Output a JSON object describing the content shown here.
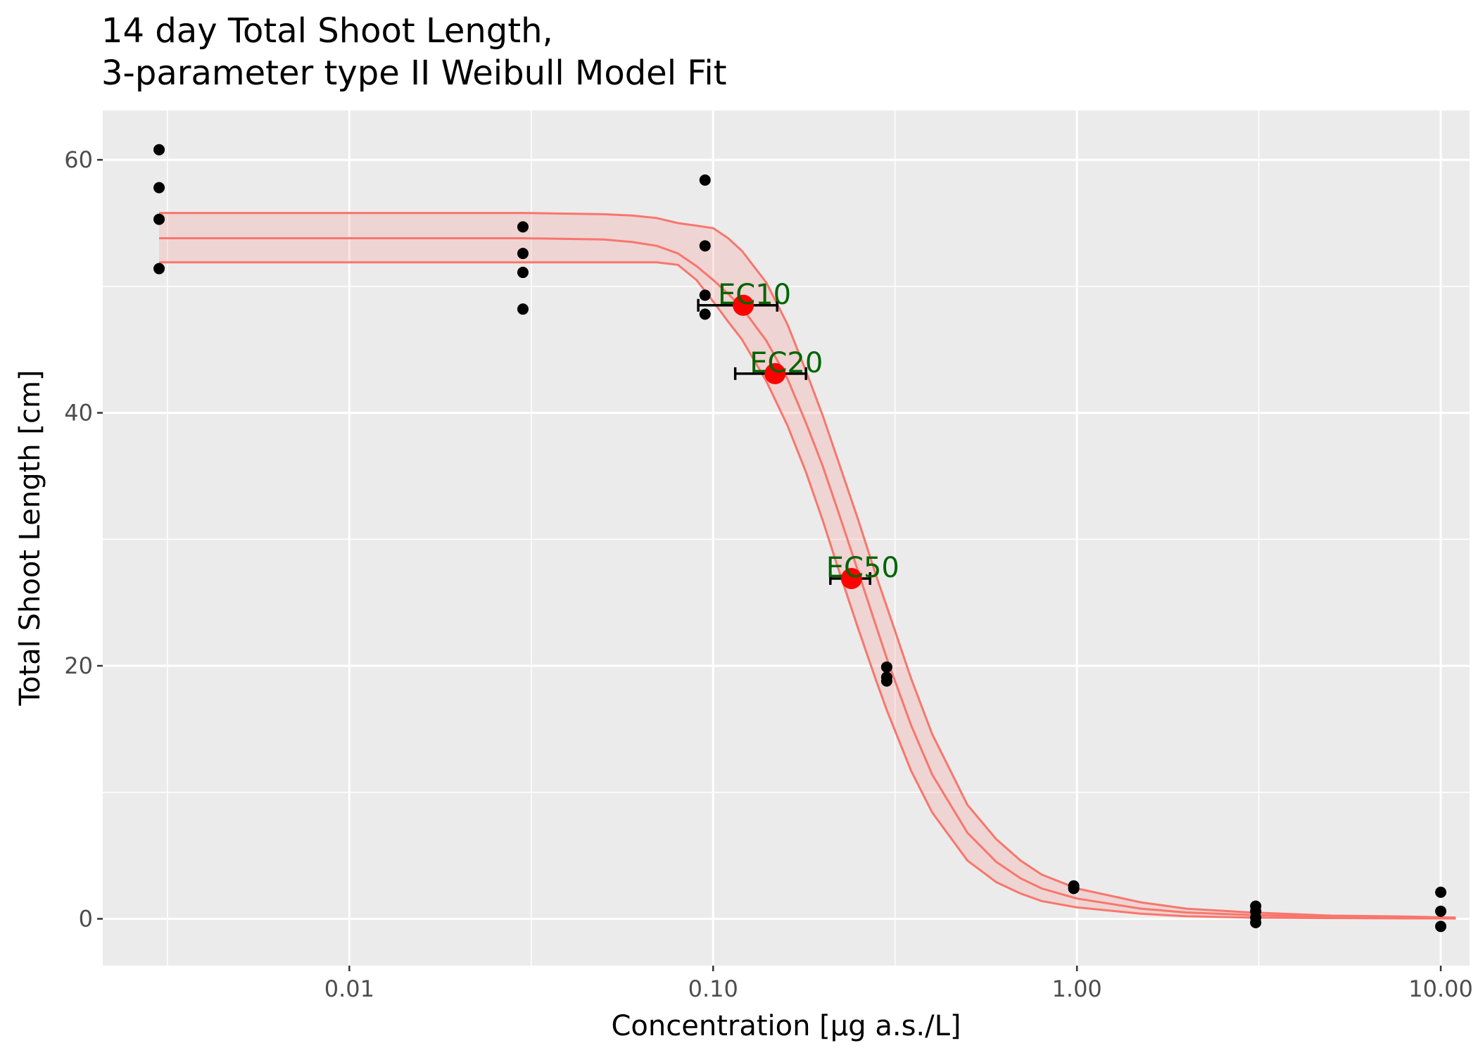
{
  "chart_data": {
    "type": "scatter",
    "title_line1": "14 day Total Shoot Length,",
    "title_line2": "3-parameter type II Weibull Model Fit",
    "xlabel": "Concentration [µg a.s./L]",
    "ylabel": "Total Shoot Length [cm]",
    "x_scale": "log10",
    "xlim": [
      0.0021,
      12.0
    ],
    "ylim": [
      -3.7,
      63.9
    ],
    "x_ticks": [
      {
        "value": 0.01,
        "label": "0.01"
      },
      {
        "value": 0.1,
        "label": "0.10"
      },
      {
        "value": 1,
        "label": "1.00"
      },
      {
        "value": 10,
        "label": "10.00"
      }
    ],
    "y_ticks": [
      {
        "value": 0,
        "label": "0"
      },
      {
        "value": 20,
        "label": "20"
      },
      {
        "value": 40,
        "label": "40"
      },
      {
        "value": 60,
        "label": "60"
      }
    ],
    "grid": true,
    "colors": {
      "panel": "#ebebeb",
      "grid": "#ffffff",
      "fit_line": "#f8766d",
      "ribbon": "rgba(248,118,109,0.2)",
      "points": "#000000",
      "ec_points": "#ff0000",
      "ec_labels": "#006400"
    },
    "observations": [
      {
        "x": 0.003,
        "y": 60.8
      },
      {
        "x": 0.003,
        "y": 57.8
      },
      {
        "x": 0.003,
        "y": 55.3
      },
      {
        "x": 0.003,
        "y": 51.4
      },
      {
        "x": 0.03,
        "y": 54.7
      },
      {
        "x": 0.03,
        "y": 52.6
      },
      {
        "x": 0.03,
        "y": 51.1
      },
      {
        "x": 0.03,
        "y": 48.2
      },
      {
        "x": 0.095,
        "y": 58.4
      },
      {
        "x": 0.095,
        "y": 53.2
      },
      {
        "x": 0.095,
        "y": 49.3
      },
      {
        "x": 0.095,
        "y": 47.8
      },
      {
        "x": 0.3,
        "y": 19.9
      },
      {
        "x": 0.3,
        "y": 19.1
      },
      {
        "x": 0.3,
        "y": 18.8
      },
      {
        "x": 0.98,
        "y": 2.6
      },
      {
        "x": 0.98,
        "y": 2.4
      },
      {
        "x": 3.1,
        "y": 1.0
      },
      {
        "x": 3.1,
        "y": 0.6
      },
      {
        "x": 3.1,
        "y": 0.1
      },
      {
        "x": 3.1,
        "y": -0.3
      },
      {
        "x": 10.0,
        "y": 2.1
      },
      {
        "x": 10.0,
        "y": 0.6
      },
      {
        "x": 10.0,
        "y": -0.6
      }
    ],
    "fit_curve": {
      "x": [
        0.003,
        0.01,
        0.03,
        0.05,
        0.06,
        0.07,
        0.08,
        0.09,
        0.1,
        0.11,
        0.12,
        0.14,
        0.16,
        0.18,
        0.2,
        0.22,
        0.25,
        0.28,
        0.3,
        0.35,
        0.4,
        0.5,
        0.6,
        0.7,
        0.8,
        1.0,
        1.5,
        2.0,
        3.0,
        5.0,
        8.0,
        11.0
      ],
      "y": [
        53.8,
        53.8,
        53.8,
        53.7,
        53.5,
        53.2,
        52.6,
        51.6,
        50.5,
        49.4,
        48.3,
        45.7,
        42.7,
        39.2,
        35.8,
        32.3,
        27.5,
        23.2,
        20.6,
        15.3,
        11.4,
        6.8,
        4.5,
        3.2,
        2.4,
        1.6,
        0.8,
        0.5,
        0.3,
        0.15,
        0.1,
        0.05
      ],
      "lower": [
        51.9,
        51.9,
        51.9,
        51.9,
        51.9,
        51.9,
        51.7,
        50.5,
        48.8,
        47.2,
        45.8,
        42.5,
        39.0,
        35.3,
        31.5,
        27.8,
        23.0,
        18.9,
        16.5,
        11.7,
        8.4,
        4.6,
        2.9,
        2.0,
        1.4,
        0.9,
        0.4,
        0.2,
        0.1,
        0.05,
        0.03,
        0.02
      ],
      "upper": [
        55.8,
        55.8,
        55.8,
        55.7,
        55.6,
        55.4,
        55.0,
        54.8,
        54.6,
        53.8,
        52.8,
        50.3,
        47.0,
        43.3,
        39.8,
        36.3,
        31.6,
        27.2,
        24.7,
        19.0,
        14.6,
        9.0,
        6.3,
        4.6,
        3.5,
        2.4,
        1.3,
        0.8,
        0.5,
        0.25,
        0.18,
        0.1
      ]
    },
    "ec_estimates": [
      {
        "label": "EC10",
        "x": 0.121,
        "y": 48.5,
        "x_low": 0.091,
        "x_high": 0.15
      },
      {
        "label": "EC20",
        "x": 0.148,
        "y": 43.1,
        "x_low": 0.115,
        "x_high": 0.18
      },
      {
        "label": "EC50",
        "x": 0.24,
        "y": 26.9,
        "x_low": 0.21,
        "x_high": 0.27
      }
    ]
  }
}
